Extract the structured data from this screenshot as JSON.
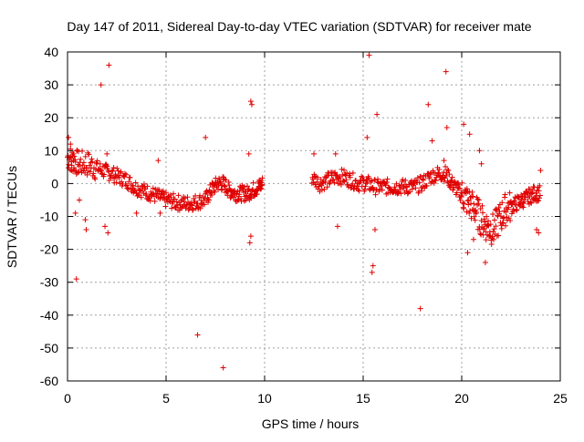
{
  "chart_data": {
    "type": "scatter",
    "title": "Day 147 of 2011, Sidereal Day-to-day VTEC variation (SDTVAR) for receiver mate",
    "xlabel": "GPS time / hours",
    "ylabel": "SDTVAR / TECUs",
    "xlim": [
      0,
      25
    ],
    "ylim": [
      -60,
      40
    ],
    "xticks": [
      0,
      5,
      10,
      15,
      20,
      25
    ],
    "yticks": [
      -60,
      -50,
      -40,
      -30,
      -20,
      -10,
      0,
      10,
      20,
      30,
      40
    ],
    "xtick_labels": [
      "0",
      "5",
      "10",
      "15",
      "20",
      "25"
    ],
    "ytick_labels": [
      "-60",
      "-50",
      "-40",
      "-30",
      "-20",
      "-10",
      "0",
      "10",
      "20",
      "30",
      "40"
    ],
    "grid": true,
    "marker": "+",
    "color": "#e00000",
    "series": [
      {
        "name": "SDTVAR",
        "points": [
          [
            0.05,
            14
          ],
          [
            0.1,
            8
          ],
          [
            0.15,
            12
          ],
          [
            0.2,
            4
          ],
          [
            0.3,
            9
          ],
          [
            0.4,
            -9
          ],
          [
            0.45,
            -29
          ],
          [
            0.6,
            -5
          ],
          [
            0.9,
            -11
          ],
          [
            0.95,
            -14
          ],
          [
            1.7,
            30
          ],
          [
            2.1,
            36
          ],
          [
            2.05,
            -15
          ],
          [
            1.9,
            -13
          ],
          [
            2.0,
            9
          ],
          [
            3.5,
            -9
          ],
          [
            4.6,
            7
          ],
          [
            4.7,
            -9
          ],
          [
            6.6,
            -46
          ],
          [
            7.0,
            14
          ],
          [
            7.9,
            -56
          ],
          [
            9.3,
            25
          ],
          [
            9.35,
            24
          ],
          [
            9.3,
            -16
          ],
          [
            9.25,
            -18
          ],
          [
            9.2,
            9
          ],
          [
            12.5,
            9
          ],
          [
            13.6,
            9
          ],
          [
            13.7,
            -13
          ],
          [
            15.3,
            39
          ],
          [
            15.2,
            14
          ],
          [
            15.5,
            -25
          ],
          [
            15.45,
            -27
          ],
          [
            15.6,
            -14
          ],
          [
            15.7,
            21
          ],
          [
            17.9,
            -38
          ],
          [
            18.3,
            24
          ],
          [
            18.5,
            13
          ],
          [
            19.2,
            34
          ],
          [
            19.25,
            17
          ],
          [
            19.1,
            7
          ],
          [
            20.1,
            18
          ],
          [
            20.4,
            15
          ],
          [
            20.3,
            -21
          ],
          [
            20.6,
            -17
          ],
          [
            21.2,
            -24
          ],
          [
            20.9,
            10
          ],
          [
            21.0,
            6
          ],
          [
            23.8,
            -14
          ],
          [
            23.9,
            -15
          ],
          [
            24.0,
            4
          ]
        ],
        "dense_trend": [
          [
            0.0,
            8
          ],
          [
            0.3,
            7
          ],
          [
            0.6,
            6
          ],
          [
            1.0,
            6
          ],
          [
            1.4,
            5
          ],
          [
            1.8,
            4
          ],
          [
            2.2,
            3
          ],
          [
            2.6,
            2
          ],
          [
            3.0,
            1
          ],
          [
            3.4,
            -1
          ],
          [
            3.8,
            -2
          ],
          [
            4.2,
            -3
          ],
          [
            4.6,
            -4
          ],
          [
            5.0,
            -5
          ],
          [
            5.4,
            -5.5
          ],
          [
            5.8,
            -6
          ],
          [
            6.2,
            -6
          ],
          [
            6.6,
            -5.5
          ],
          [
            7.0,
            -5
          ],
          [
            7.3,
            -2
          ],
          [
            7.6,
            0
          ],
          [
            7.9,
            0
          ],
          [
            8.2,
            -2
          ],
          [
            8.5,
            -3
          ],
          [
            8.8,
            -3
          ],
          [
            9.1,
            -3
          ],
          [
            9.4,
            -2
          ],
          [
            9.7,
            -1
          ],
          [
            9.9,
            0
          ],
          [
            12.4,
            2
          ],
          [
            12.8,
            0
          ],
          [
            13.2,
            1
          ],
          [
            13.6,
            2
          ],
          [
            14.0,
            2
          ],
          [
            14.4,
            1
          ],
          [
            14.8,
            0
          ],
          [
            15.2,
            0
          ],
          [
            15.6,
            -1
          ],
          [
            16.0,
            -1
          ],
          [
            16.4,
            -1
          ],
          [
            16.8,
            -1
          ],
          [
            17.2,
            -1
          ],
          [
            17.6,
            -1
          ],
          [
            18.0,
            0
          ],
          [
            18.4,
            2
          ],
          [
            18.8,
            3
          ],
          [
            19.2,
            3
          ],
          [
            19.5,
            0
          ],
          [
            19.8,
            -2
          ],
          [
            20.1,
            -4
          ],
          [
            20.4,
            -6
          ],
          [
            20.7,
            -8
          ],
          [
            21.0,
            -11
          ],
          [
            21.3,
            -13
          ],
          [
            21.6,
            -14
          ],
          [
            21.9,
            -11
          ],
          [
            22.2,
            -8
          ],
          [
            22.5,
            -7
          ],
          [
            22.8,
            -6
          ],
          [
            23.1,
            -5
          ],
          [
            23.4,
            -4
          ],
          [
            23.7,
            -3
          ],
          [
            24.0,
            -3
          ]
        ]
      }
    ]
  }
}
